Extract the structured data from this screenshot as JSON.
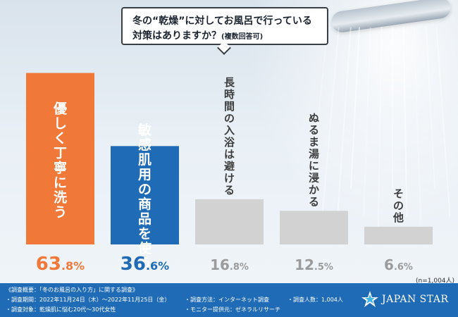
{
  "title": {
    "line1": "冬の“乾燥”に対してお風呂で行っている",
    "line2": "対策はありますか？",
    "note": "(複数回答可)"
  },
  "chart_data": {
    "type": "bar",
    "categories": [
      "優しく丁寧に洗う",
      "敏感肌用の商品を使う",
      "長時間の入浴は避ける",
      "ぬるま湯に浸かる",
      "その他"
    ],
    "values": [
      63.8,
      36.6,
      16.8,
      12.5,
      6.6
    ],
    "value_labels": [
      "63.8%",
      "36.6%",
      "16.8%",
      "12.5%",
      "6.6%"
    ],
    "unit": "%",
    "ylim": [
      0,
      65
    ],
    "highlight_colors": [
      "#f0793a",
      "#1f6bb5"
    ],
    "default_color": "#d2d2d2",
    "highlight_text_colors": [
      "#f0793a",
      "#1f6bb5"
    ],
    "default_text_color": "#9b9b9b",
    "sample_note": "(n=1,004人)"
  },
  "footer": {
    "summary": "《調査概要：「冬のお風呂の入り方」に関する調査》",
    "period": "・調査期間：2022年11月24日（木）〜2022年11月25日（金）",
    "method": "・調査方法：インターネット調査",
    "count": "・調査人数：1,004人",
    "target": "・調査対象：乾燥肌に悩む20代〜30代女性",
    "provider": "・モニター提供元：ゼネラルリサーチ",
    "brand": "JAPAN STAR"
  }
}
